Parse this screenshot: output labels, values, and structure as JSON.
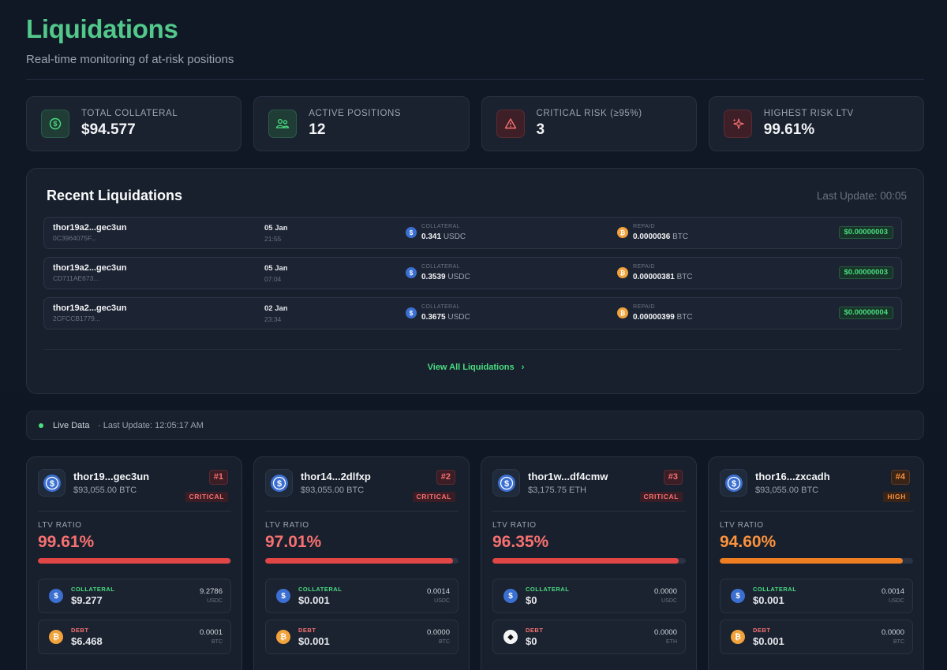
{
  "header": {
    "title": "Liquidations",
    "subtitle": "Real-time monitoring of at-risk positions"
  },
  "stats": [
    {
      "label": "TOTAL COLLATERAL",
      "value": "$94.577",
      "icon": "dollar-circle-icon",
      "tone": "green"
    },
    {
      "label": "ACTIVE POSITIONS",
      "value": "12",
      "icon": "users-icon",
      "tone": "green"
    },
    {
      "label": "CRITICAL RISK (≥95%)",
      "value": "3",
      "icon": "warning-triangle-icon",
      "tone": "red"
    },
    {
      "label": "HIGHEST RISK LTV",
      "value": "99.61%",
      "icon": "sparkle-icon",
      "tone": "red"
    }
  ],
  "recent": {
    "title": "Recent Liquidations",
    "last_update": "Last Update: 00:05",
    "collateral_label": "COLLATERAL",
    "repaid_label": "REPAID",
    "rows": [
      {
        "address": "thor19a2...gec3un",
        "hash": "0C3964075F...",
        "date": "05 Jan",
        "time": "21:55",
        "collateral_amount": "0.341",
        "collateral_unit": "USDC",
        "repaid_amount": "0.0000036",
        "repaid_unit": "BTC",
        "value": "$0.00000003"
      },
      {
        "address": "thor19a2...gec3un",
        "hash": "CD711AE673...",
        "date": "05 Jan",
        "time": "07:04",
        "collateral_amount": "0.3539",
        "collateral_unit": "USDC",
        "repaid_amount": "0.00000381",
        "repaid_unit": "BTC",
        "value": "$0.00000003"
      },
      {
        "address": "thor19a2...gec3un",
        "hash": "2CFCCB1779...",
        "date": "02 Jan",
        "time": "23:34",
        "collateral_amount": "0.3675",
        "collateral_unit": "USDC",
        "repaid_amount": "0.00000399",
        "repaid_unit": "BTC",
        "value": "$0.00000004"
      }
    ],
    "view_all": "View All Liquidations"
  },
  "live": {
    "label": "Live Data",
    "last_update": "· Last Update: 12:05:17 AM"
  },
  "positions": [
    {
      "address": "thor19...gec3un",
      "value": "$93,055.00 BTC",
      "rank": "#1",
      "risk": "CRITICAL",
      "risk_level": "crit",
      "ltv_label": "LTV RATIO",
      "ltv": "99.61%",
      "ltv_fraction": 0.9961,
      "collateral": {
        "label": "COLLATERAL",
        "usd": "$9.277",
        "qty": "9.2786",
        "unit": "USDC",
        "coin": "usdc"
      },
      "debt": {
        "label": "DEBT",
        "usd": "$6.468",
        "qty": "0.0001",
        "unit": "BTC",
        "coin": "btc"
      }
    },
    {
      "address": "thor14...2dlfxp",
      "value": "$93,055.00 BTC",
      "rank": "#2",
      "risk": "CRITICAL",
      "risk_level": "crit",
      "ltv_label": "LTV RATIO",
      "ltv": "97.01%",
      "ltv_fraction": 0.9701,
      "collateral": {
        "label": "COLLATERAL",
        "usd": "$0.001",
        "qty": "0.0014",
        "unit": "USDC",
        "coin": "usdc"
      },
      "debt": {
        "label": "DEBT",
        "usd": "$0.001",
        "qty": "0.0000",
        "unit": "BTC",
        "coin": "btc"
      }
    },
    {
      "address": "thor1w...df4cmw",
      "value": "$3,175.75 ETH",
      "rank": "#3",
      "risk": "CRITICAL",
      "risk_level": "crit",
      "ltv_label": "LTV RATIO",
      "ltv": "96.35%",
      "ltv_fraction": 0.9635,
      "collateral": {
        "label": "COLLATERAL",
        "usd": "$0",
        "qty": "0.0000",
        "unit": "USDC",
        "coin": "usdc"
      },
      "debt": {
        "label": "DEBT",
        "usd": "$0",
        "qty": "0.0000",
        "unit": "ETH",
        "coin": "eth"
      }
    },
    {
      "address": "thor16...zxcadh",
      "value": "$93,055.00 BTC",
      "rank": "#4",
      "risk": "HIGH",
      "risk_level": "high",
      "ltv_label": "LTV RATIO",
      "ltv": "94.60%",
      "ltv_fraction": 0.946,
      "collateral": {
        "label": "COLLATERAL",
        "usd": "$0.001",
        "qty": "0.0014",
        "unit": "USDC",
        "coin": "usdc"
      },
      "debt": {
        "label": "DEBT",
        "usd": "$0.001",
        "qty": "0.0000",
        "unit": "BTC",
        "coin": "btc"
      }
    }
  ]
}
